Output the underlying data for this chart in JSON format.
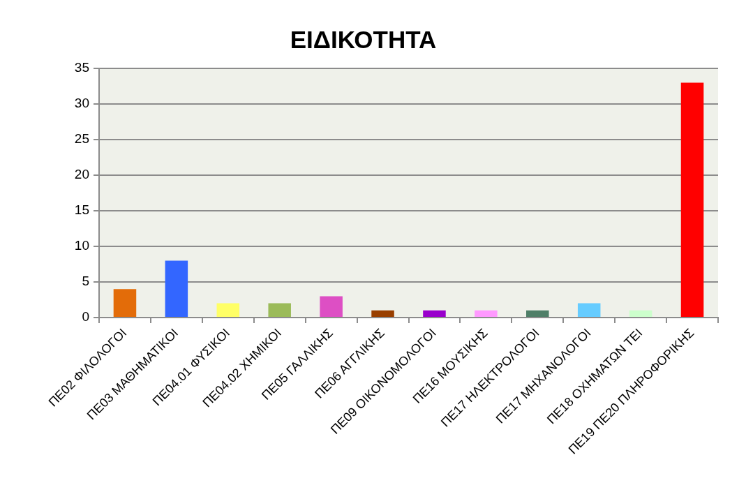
{
  "chart_data": {
    "type": "bar",
    "title": "ΕΙΔΙΚΟΤΗΤΑ",
    "categories": [
      "ΠΕ02 ΦΙΛΟΛΟΓΟΙ",
      "ΠΕ03 ΜΑΘΗΜΑΤΙΚΟΙ",
      "ΠΕ04.01 ΦΥΣΙΚΟΙ",
      "ΠΕ04.02 ΧΗΜΙΚΟΙ",
      "ΠΕ05 ΓΑΛΛΙΚΗΣ",
      "ΠΕ06 ΑΓΓΛΙΚΗΣ",
      "ΠΕ09 ΟΙΚΟΝΟΜΟΛΟΓΟΙ",
      "ΠΕ16 ΜΟΥΣΙΚΗΣ",
      "ΠΕ17 ΗΛΕΚΤΡΟΛΟΓΟΙ",
      "ΠΕ17 ΜΗΧΑΝΟΛΟΓΟΙ",
      "ΠΕ18 ΟΧΗΜΑΤΩΝ ΤΕΙ",
      "ΠΕ19 ΠΕ20 ΠΛΗΡΟΦΟΡΙΚΗΣ"
    ],
    "values": [
      4,
      8,
      2,
      2,
      3,
      1,
      1,
      1,
      1,
      2,
      1,
      33
    ],
    "colors": [
      "#e36c09",
      "#3366ff",
      "#ffff66",
      "#9bbb59",
      "#dd4fc4",
      "#993f00",
      "#9900cc",
      "#ff99ff",
      "#4f7f68",
      "#66ccff",
      "#ccffcc",
      "#ff0000"
    ],
    "ylim": [
      0,
      35
    ],
    "yticks": [
      0,
      5,
      10,
      15,
      20,
      25,
      30,
      35
    ],
    "grid": "y"
  }
}
